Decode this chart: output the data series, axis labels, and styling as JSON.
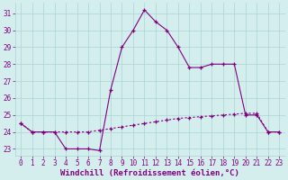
{
  "xlabel": "Windchill (Refroidissement éolien,°C)",
  "x_values": [
    0,
    1,
    2,
    3,
    4,
    5,
    6,
    7,
    8,
    9,
    10,
    11,
    12,
    13,
    14,
    15,
    16,
    17,
    18,
    19,
    20,
    21,
    22,
    23
  ],
  "line1_y": [
    24.5,
    24.0,
    24.0,
    24.0,
    23.0,
    23.0,
    23.0,
    22.9,
    26.5,
    29.0,
    30.0,
    31.2,
    30.5,
    30.0,
    29.0,
    27.8,
    27.8,
    28.0,
    28.0,
    28.0,
    25.0,
    25.0,
    24.0,
    24.0
  ],
  "line2_y": [
    24.5,
    24.0,
    24.0,
    24.0,
    24.0,
    24.0,
    24.0,
    24.1,
    24.2,
    24.3,
    24.4,
    24.5,
    24.6,
    24.7,
    24.8,
    24.85,
    24.9,
    24.95,
    25.0,
    25.05,
    25.1,
    25.1,
    24.0,
    24.0
  ],
  "line_color": "#800080",
  "bg_color": "#d4eeee",
  "grid_color": "#aad4d4",
  "ylim": [
    22.6,
    31.6
  ],
  "yticks": [
    23,
    24,
    25,
    26,
    27,
    28,
    29,
    30,
    31
  ],
  "xlim": [
    -0.5,
    23.5
  ],
  "tick_fontsize": 5.5,
  "label_fontsize": 6.5
}
